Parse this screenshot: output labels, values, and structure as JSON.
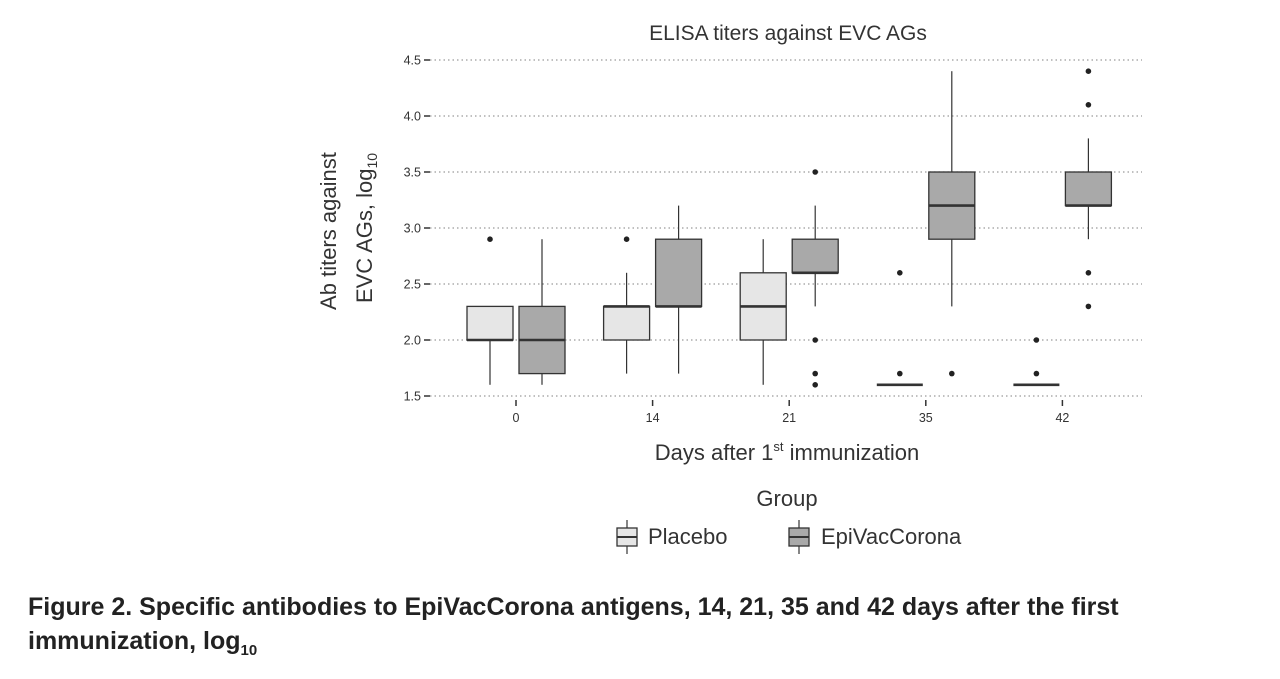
{
  "chart_data": {
    "type": "boxplot",
    "title": "ELISA titers against EVC AGs",
    "ylabel_line1": "Ab titers against",
    "ylabel_line2": "EVC AGs, log",
    "ylabel_sub": "10",
    "xlabel": "Days after 1",
    "xlabel_sup": "st",
    "xlabel_tail": " immunization",
    "ylim": [
      1.5,
      4.5
    ],
    "yticks": [
      "1.5",
      "2.0",
      "2.5",
      "3.0",
      "3.5",
      "4.0",
      "4.5"
    ],
    "categories": [
      "0",
      "14",
      "21",
      "35",
      "42"
    ],
    "grid": "horizontal dotted",
    "legend": {
      "title": "Group",
      "placement": "bottom"
    },
    "series": [
      {
        "name": "Placebo",
        "color": "#e6e6e6",
        "boxes": [
          {
            "min": 1.6,
            "q1": 2.0,
            "median": 2.0,
            "q3": 2.3,
            "max": 2.3,
            "outliers": [
              2.9
            ]
          },
          {
            "min": 1.7,
            "q1": 2.0,
            "median": 2.3,
            "q3": 2.3,
            "max": 2.6,
            "outliers": [
              2.9
            ]
          },
          {
            "min": 1.6,
            "q1": 2.0,
            "median": 2.3,
            "q3": 2.6,
            "max": 2.9,
            "outliers": []
          },
          {
            "min": 1.6,
            "q1": 1.6,
            "median": 1.6,
            "q3": 1.6,
            "max": 1.6,
            "outliers": [
              1.7,
              2.6
            ]
          },
          {
            "min": 1.6,
            "q1": 1.6,
            "median": 1.6,
            "q3": 1.6,
            "max": 1.6,
            "outliers": [
              1.7,
              2.0
            ]
          }
        ]
      },
      {
        "name": "EpiVacCorona",
        "color": "#a9a9a9",
        "boxes": [
          {
            "min": 1.6,
            "q1": 1.7,
            "median": 2.0,
            "q3": 2.3,
            "max": 2.9,
            "outliers": []
          },
          {
            "min": 1.7,
            "q1": 2.3,
            "median": 2.3,
            "q3": 2.9,
            "max": 3.2,
            "outliers": []
          },
          {
            "min": 2.3,
            "q1": 2.6,
            "median": 2.6,
            "q3": 2.9,
            "max": 3.2,
            "outliers": [
              1.6,
              1.7,
              2.0,
              3.5
            ]
          },
          {
            "min": 2.3,
            "q1": 2.9,
            "median": 3.2,
            "q3": 3.5,
            "max": 4.4,
            "outliers": [
              1.7
            ]
          },
          {
            "min": 2.9,
            "q1": 3.2,
            "median": 3.2,
            "q3": 3.5,
            "max": 3.8,
            "outliers": [
              2.3,
              2.6,
              4.1,
              4.4
            ]
          }
        ]
      }
    ]
  },
  "caption": {
    "main": "Figure 2. Specific antibodies to EpiVacCorona antigens, 14, 21, 35 and 42 days after the first immunization, log",
    "sub": "10"
  }
}
